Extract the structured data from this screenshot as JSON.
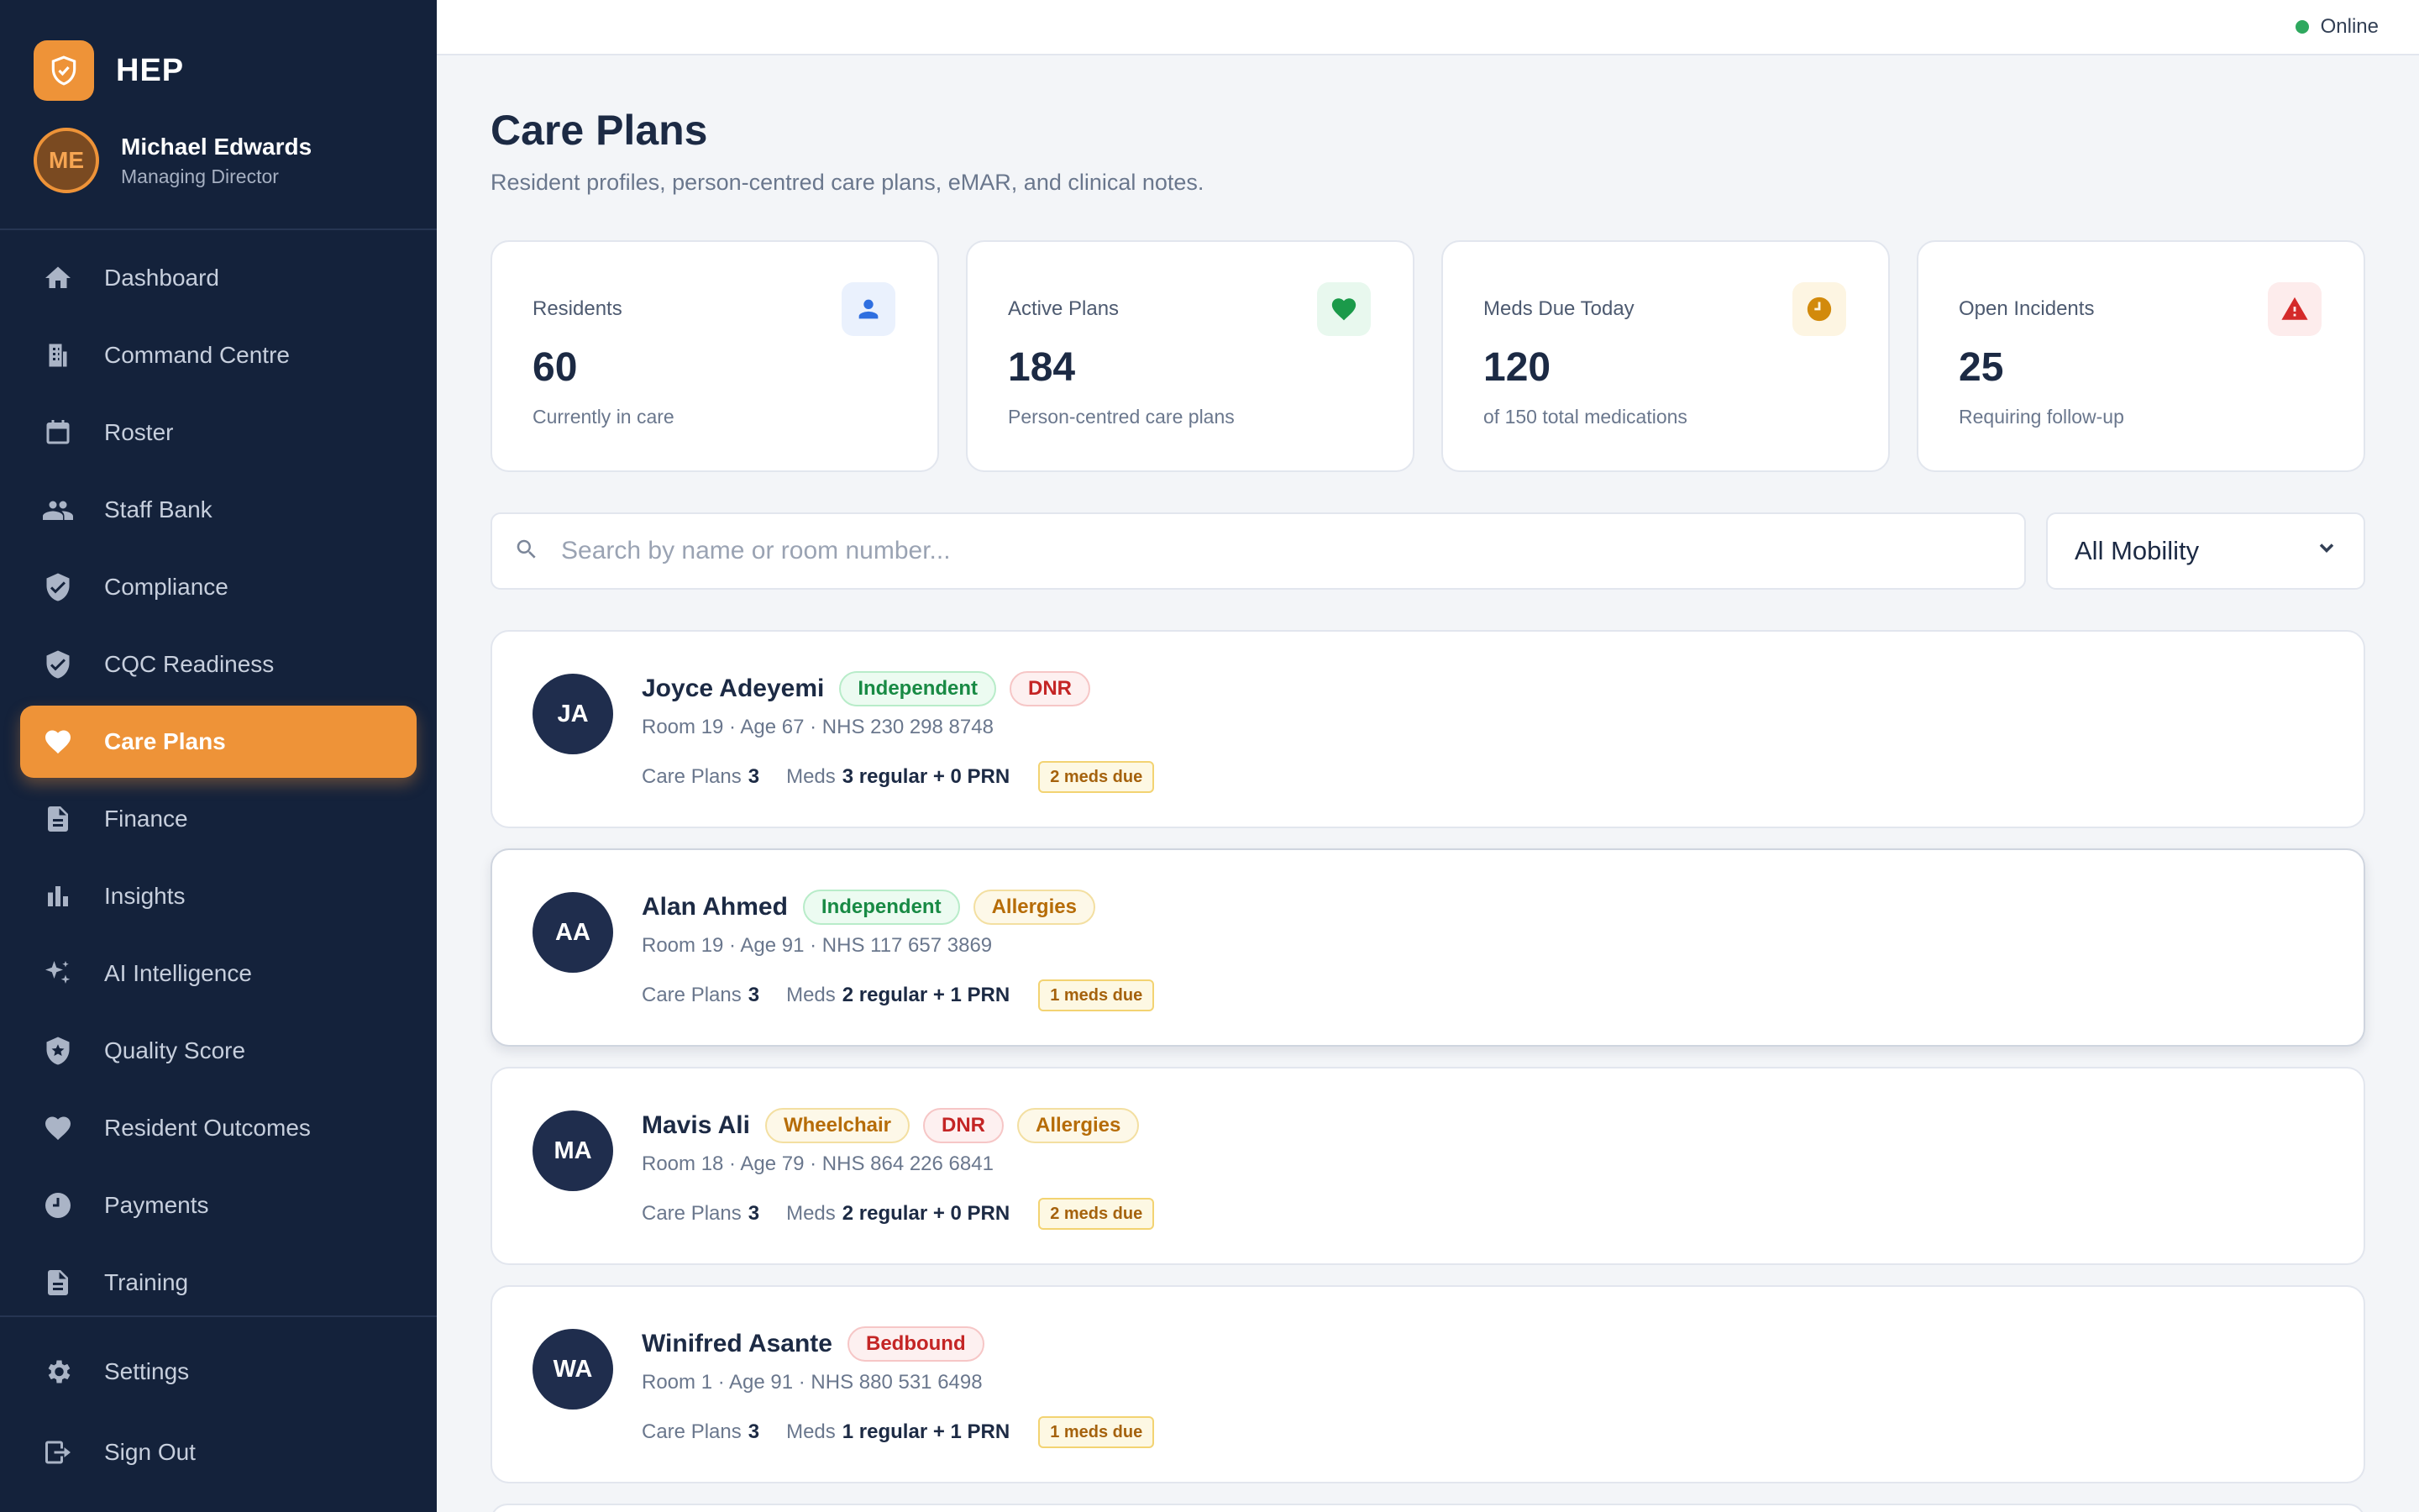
{
  "brand": {
    "name": "HEP"
  },
  "user": {
    "initials": "ME",
    "name": "Michael Edwards",
    "role": "Managing Director"
  },
  "nav": [
    {
      "label": "Dashboard",
      "icon": "home-icon",
      "active": false
    },
    {
      "label": "Command Centre",
      "icon": "building-icon",
      "active": false
    },
    {
      "label": "Roster",
      "icon": "calendar-icon",
      "active": false
    },
    {
      "label": "Staff Bank",
      "icon": "people-icon",
      "active": false
    },
    {
      "label": "Compliance",
      "icon": "shield-check-icon",
      "active": false
    },
    {
      "label": "CQC Readiness",
      "icon": "shield-check-icon",
      "active": false
    },
    {
      "label": "Care Plans",
      "icon": "heart-icon",
      "active": true
    },
    {
      "label": "Finance",
      "icon": "document-icon",
      "active": false
    },
    {
      "label": "Insights",
      "icon": "bar-chart-icon",
      "active": false
    },
    {
      "label": "AI Intelligence",
      "icon": "sparkle-icon",
      "active": false
    },
    {
      "label": "Quality Score",
      "icon": "shield-star-icon",
      "active": false
    },
    {
      "label": "Resident Outcomes",
      "icon": "heart-icon",
      "active": false
    },
    {
      "label": "Payments",
      "icon": "clock-icon",
      "active": false
    },
    {
      "label": "Training",
      "icon": "document-icon",
      "active": false
    }
  ],
  "nav_bottom": [
    {
      "label": "Settings",
      "icon": "gear-icon"
    },
    {
      "label": "Sign Out",
      "icon": "sign-out-icon"
    }
  ],
  "status": {
    "label": "Online",
    "color": "#2ea85e"
  },
  "page": {
    "title": "Care Plans",
    "subtitle": "Resident profiles, person-centred care plans, eMAR, and clinical notes."
  },
  "stats": [
    {
      "label": "Residents",
      "value": "60",
      "foot": "Currently in care",
      "icon": "person-icon",
      "color": "#2f6fe0",
      "bg": "#eaf1fd"
    },
    {
      "label": "Active Plans",
      "value": "184",
      "foot": "Person-centred care plans",
      "icon": "heart-icon",
      "color": "#1b9a4a",
      "bg": "#e8f8ee"
    },
    {
      "label": "Meds Due Today",
      "value": "120",
      "foot": "of 150 total medications",
      "icon": "clock-icon",
      "color": "#d28a0c",
      "bg": "#fdf5e2"
    },
    {
      "label": "Open Incidents",
      "value": "25",
      "foot": "Requiring follow-up",
      "icon": "warning-icon",
      "color": "#d42a2a",
      "bg": "#fdecec"
    }
  ],
  "search": {
    "placeholder": "Search by name or room number...",
    "value": ""
  },
  "filter": {
    "selected": "All Mobility"
  },
  "labels": {
    "care_plans": "Care Plans",
    "meds": "Meds"
  },
  "residents": [
    {
      "initials": "JA",
      "name": "Joyce Adeyemi",
      "tags": [
        {
          "text": "Independent",
          "tone": "green"
        },
        {
          "text": "DNR",
          "tone": "red"
        }
      ],
      "meta": "Room 19 · Age 67 · NHS 230 298 8748",
      "care_plans": "3",
      "meds": "3 regular + 0 PRN",
      "due": "2 meds due"
    },
    {
      "initials": "AA",
      "name": "Alan Ahmed",
      "tags": [
        {
          "text": "Independent",
          "tone": "green"
        },
        {
          "text": "Allergies",
          "tone": "amber"
        }
      ],
      "meta": "Room 19 · Age 91 · NHS 117 657 3869",
      "care_plans": "3",
      "meds": "2 regular + 1 PRN",
      "due": "1 meds due"
    },
    {
      "initials": "MA",
      "name": "Mavis Ali",
      "tags": [
        {
          "text": "Wheelchair",
          "tone": "amber"
        },
        {
          "text": "DNR",
          "tone": "red"
        },
        {
          "text": "Allergies",
          "tone": "amber"
        }
      ],
      "meta": "Room 18 · Age 79 · NHS 864 226 6841",
      "care_plans": "3",
      "meds": "2 regular + 0 PRN",
      "due": "2 meds due"
    },
    {
      "initials": "WA",
      "name": "Winifred Asante",
      "tags": [
        {
          "text": "Bedbound",
          "tone": "red"
        }
      ],
      "meta": "Room 1 · Age 91 · NHS 880 531 6498",
      "care_plans": "3",
      "meds": "1 regular + 1 PRN",
      "due": "1 meds due"
    }
  ]
}
